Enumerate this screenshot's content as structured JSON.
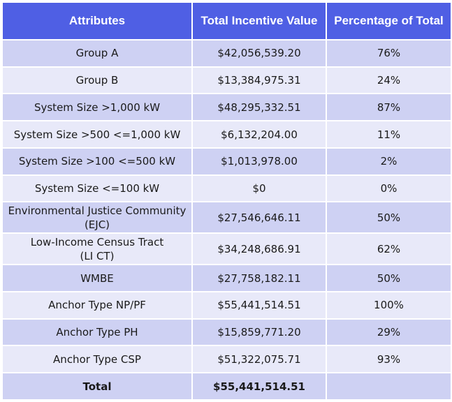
{
  "header": {
    "col1": "Attributes",
    "col2": "Total Incentive Value",
    "col3": "Percentage of Total"
  },
  "rows": [
    {
      "attribute": "Group A",
      "value": "$42,056,539.20",
      "percent": "76%"
    },
    {
      "attribute": "Group B",
      "value": "$13,384,975.31",
      "percent": "24%"
    },
    {
      "attribute": "System Size >1,000 kW",
      "value": "$48,295,332.51",
      "percent": "87%"
    },
    {
      "attribute": "System Size >500 <=1,000 kW",
      "value": "$6,132,204.00",
      "percent": "11%"
    },
    {
      "attribute": "System Size >100 <=500 kW",
      "value": "$1,013,978.00",
      "percent": "2%"
    },
    {
      "attribute": "System Size <=100 kW",
      "value": "$0",
      "percent": "0%"
    },
    {
      "attribute": "Environmental Justice  Community\n(EJC)",
      "value": "$27,546,646.11",
      "percent": "50%"
    },
    {
      "attribute": "Low-Income Census Tract\n(LI CT)",
      "value": "$34,248,686.91",
      "percent": "62%"
    },
    {
      "attribute": "WMBE",
      "value": "$27,758,182.11",
      "percent": "50%"
    },
    {
      "attribute": "Anchor Type NP/PF",
      "value": "$55,441,514.51",
      "percent": "100%"
    },
    {
      "attribute": "Anchor Type PH",
      "value": "$15,859,771.20",
      "percent": "29%"
    },
    {
      "attribute": "Anchor Type CSP",
      "value": "$51,322,075.71",
      "percent": "93%"
    }
  ],
  "total": {
    "attribute": "Total",
    "value": "$55,441,514.51",
    "percent": ""
  },
  "colors": {
    "header": "#4f5fe4",
    "row_dark": "#ced1f3",
    "row_light": "#e8e9f9"
  }
}
